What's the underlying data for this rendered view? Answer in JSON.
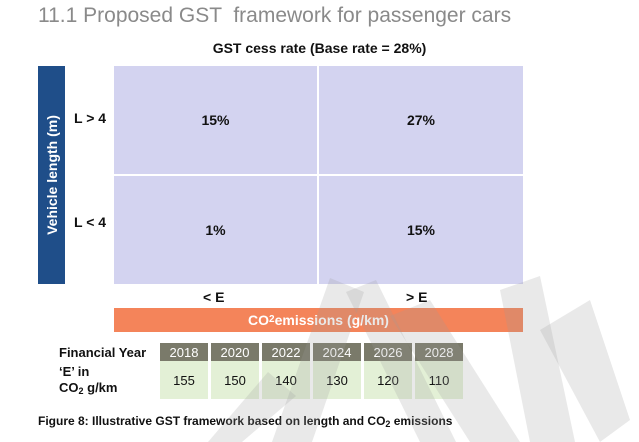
{
  "heading": "11.1 Proposed GST  framework for passenger cars",
  "subtitle": "GST cess rate (Base rate = 28%)",
  "y_axis_label": "Vehicle length (m)",
  "row_labels": [
    "L > 4",
    "L < 4"
  ],
  "col_labels": [
    "< E",
    "> E"
  ],
  "cells": [
    [
      "15%",
      "27%"
    ],
    [
      "1%",
      "15%"
    ]
  ],
  "x_axis": {
    "prefix": "CO",
    "sub": "2",
    "suffix": " emissions (g/km)"
  },
  "table": {
    "row1_label": "Financial Year",
    "row2_label_l1": "‘E’ in",
    "row2_label_l2_prefix": "CO",
    "row2_label_l2_sub": "2",
    "row2_label_l2_suffix": " g/km",
    "years": [
      "2018",
      "2020",
      "2022",
      "2024",
      "2026",
      "2028"
    ],
    "values": [
      "155",
      "150",
      "140",
      "130",
      "120",
      "110"
    ]
  },
  "caption": {
    "prefix": "Figure 8: Illustrative GST framework based on length and CO",
    "sub": "2",
    "suffix": " emissions"
  },
  "colors": {
    "grid_cell": "#d3d3f0",
    "axis_bar": "#1f4e89",
    "co2_bar": "#f4845a",
    "year_header": "#7a7a6a",
    "value_cell": "#e3f0d6"
  }
}
